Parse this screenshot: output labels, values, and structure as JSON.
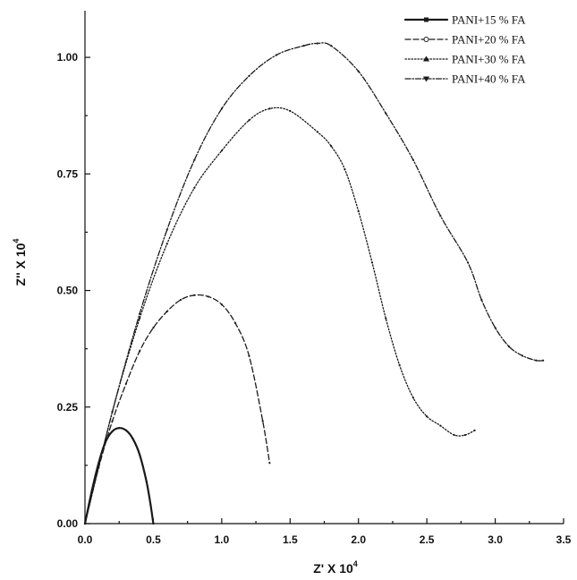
{
  "chart_data": {
    "type": "line",
    "xlabel": "Z' X 10",
    "xlabel_exp": "4",
    "ylabel": "Z'' X 10",
    "ylabel_exp": "4",
    "xlim": [
      0,
      3.5
    ],
    "ylim": [
      0,
      1.1
    ],
    "xticks": [
      "0.0",
      "0.5",
      "1.0",
      "1.5",
      "2.0",
      "2.5",
      "3.0",
      "3.5"
    ],
    "yticks": [
      "0.00",
      "0.25",
      "0.50",
      "0.75",
      "1.00"
    ],
    "grid": false,
    "legend_position": "top-right",
    "series": [
      {
        "name": "PANI+15 % FA",
        "marker": "square",
        "dash": "solid",
        "x": [
          0,
          0.05,
          0.1,
          0.15,
          0.2,
          0.25,
          0.3,
          0.35,
          0.4,
          0.45,
          0.48,
          0.5
        ],
        "y": [
          0,
          0.07,
          0.13,
          0.175,
          0.198,
          0.205,
          0.2,
          0.182,
          0.148,
          0.09,
          0.04,
          0
        ]
      },
      {
        "name": "PANI+20 % FA",
        "marker": "circle",
        "dash": "dashed",
        "x": [
          0,
          0.1,
          0.2,
          0.3,
          0.4,
          0.5,
          0.6,
          0.7,
          0.8,
          0.9,
          1.0,
          1.1,
          1.2,
          1.3,
          1.35
        ],
        "y": [
          0,
          0.12,
          0.22,
          0.3,
          0.37,
          0.42,
          0.455,
          0.48,
          0.49,
          0.487,
          0.47,
          0.43,
          0.36,
          0.22,
          0.13
        ]
      },
      {
        "name": "PANI+30 % FA",
        "marker": "triangle",
        "dash": "dotted",
        "x": [
          0,
          0.2,
          0.4,
          0.6,
          0.8,
          1.0,
          1.2,
          1.35,
          1.5,
          1.7,
          1.8,
          1.9,
          2.0,
          2.1,
          2.2,
          2.3,
          2.4,
          2.5,
          2.6,
          2.7,
          2.78,
          2.85
        ],
        "y": [
          0,
          0.24,
          0.44,
          0.6,
          0.72,
          0.8,
          0.865,
          0.89,
          0.885,
          0.84,
          0.81,
          0.76,
          0.67,
          0.56,
          0.44,
          0.34,
          0.27,
          0.23,
          0.21,
          0.19,
          0.19,
          0.2
        ]
      },
      {
        "name": "PANI+40 % FA",
        "marker": "triangle-down",
        "dash": "dash-dot",
        "x": [
          0,
          0.2,
          0.4,
          0.6,
          0.8,
          1.0,
          1.2,
          1.4,
          1.6,
          1.7,
          1.8,
          2.0,
          2.2,
          2.4,
          2.6,
          2.8,
          2.9,
          3.0,
          3.1,
          3.2,
          3.3,
          3.35
        ],
        "y": [
          0,
          0.24,
          0.45,
          0.63,
          0.78,
          0.89,
          0.96,
          1.005,
          1.025,
          1.03,
          1.025,
          0.97,
          0.88,
          0.78,
          0.66,
          0.56,
          0.48,
          0.42,
          0.38,
          0.36,
          0.35,
          0.35
        ]
      }
    ]
  }
}
